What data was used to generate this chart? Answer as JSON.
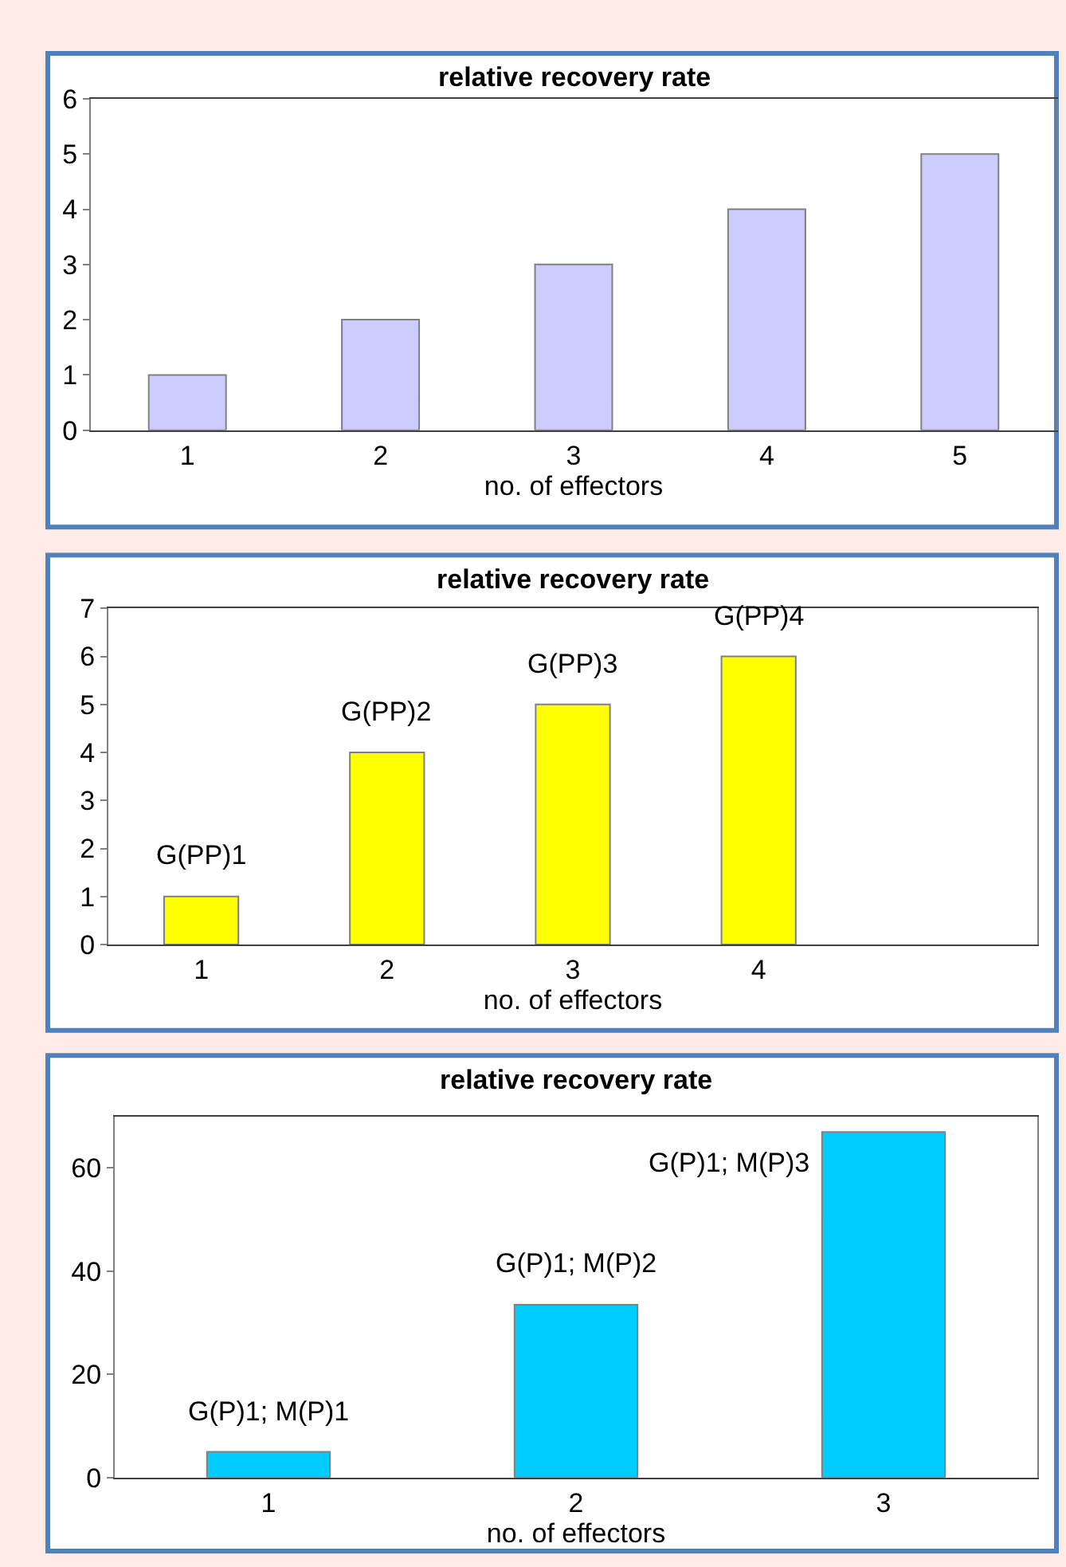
{
  "chart_data": [
    {
      "type": "bar",
      "title": "relative recovery rate",
      "xlabel": "no. of effectors",
      "categories": [
        "1",
        "2",
        "3",
        "4",
        "5"
      ],
      "values": [
        1,
        2,
        3,
        4,
        5
      ],
      "color": "#ccccff",
      "ylim": [
        0,
        6
      ],
      "yticks": [
        0,
        1,
        2,
        3,
        4,
        5,
        6
      ],
      "grid": false,
      "legend": false
    },
    {
      "type": "bar",
      "title": "relative recovery rate",
      "xlabel": "no. of effectors",
      "categories": [
        "1",
        "2",
        "3",
        "4",
        null
      ],
      "values": [
        1,
        4,
        5,
        6,
        null
      ],
      "color": "#ffff00",
      "ylim": [
        0,
        7
      ],
      "yticks": [
        0,
        1,
        2,
        3,
        4,
        5,
        6,
        7
      ],
      "grid": false,
      "legend": false,
      "annotations": [
        {
          "text": "G(PP)1",
          "x": "1",
          "y": 1
        },
        {
          "text": "G(PP)2",
          "x": "2",
          "y": 4
        },
        {
          "text": "G(PP)3",
          "x": "3",
          "y": 5
        },
        {
          "text": "G(PP)4",
          "x": "4",
          "y": 6
        }
      ]
    },
    {
      "type": "bar",
      "title": "relative recovery rate",
      "xlabel": "no. of effectors",
      "categories": [
        "1",
        "2",
        "3"
      ],
      "values": [
        5,
        33.5,
        67
      ],
      "color": "#00ccff",
      "ylim": [
        0,
        70
      ],
      "yticks": [
        0,
        20,
        40,
        60
      ],
      "grid": false,
      "legend": false,
      "annotations": [
        {
          "text": "G(P)1; M(P)1",
          "x": "1",
          "y": 5
        },
        {
          "text": "G(P)1; M(P)2",
          "x": "2",
          "y": 33.5
        },
        {
          "text": "G(P)1; M(P)3",
          "x": "3",
          "y": 67
        }
      ]
    }
  ]
}
